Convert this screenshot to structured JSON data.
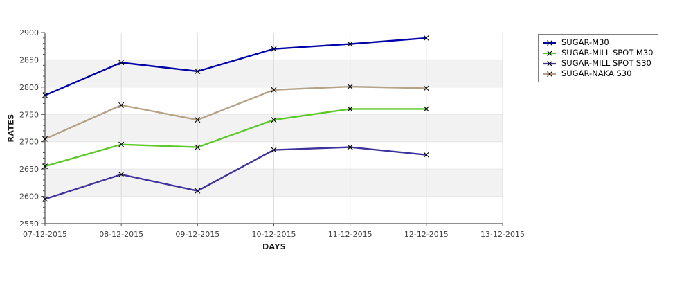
{
  "page": {
    "background": "#ffffff"
  },
  "chart_data": {
    "type": "line",
    "title": "",
    "xlabel": "DAYS",
    "ylabel": "RATES",
    "categories": [
      "07-12-2015",
      "08-12-2015",
      "09-12-2015",
      "10-12-2015",
      "11-12-2015",
      "12-12-2015",
      "13-12-2015"
    ],
    "y_ticks": [
      2550,
      2600,
      2650,
      2700,
      2750,
      2800,
      2850,
      2900
    ],
    "ylim": [
      2550,
      2900
    ],
    "minor_tick_step": 10,
    "grid": "on",
    "legend_position": "right",
    "marker": "x",
    "marker_color": "#000000",
    "band_color_odd": "#f2f2f2",
    "band_color_even": "#ffffff",
    "v_gridline_color": "#dcdcdc",
    "h_gridline_color": "#e6e6e6",
    "axis_color": "#4d4d4d",
    "series": [
      {
        "name": "SUGAR-M30",
        "color": "#0000a8",
        "values": [
          2785,
          2845,
          2829,
          2870,
          2879,
          2890
        ]
      },
      {
        "name": "SUGAR-MILL SPOT M30",
        "color": "#5cc929",
        "values": [
          2655,
          2695,
          2690,
          2740,
          2760,
          2760
        ]
      },
      {
        "name": "SUGAR-MILL SPOT S30",
        "color": "#3e339b",
        "values": [
          2595,
          2640,
          2610,
          2685,
          2690,
          2676
        ]
      },
      {
        "name": "SUGAR-NAKA S30",
        "color": "#b5a287",
        "values": [
          2705,
          2767,
          2740,
          2795,
          2801,
          2798
        ]
      }
    ]
  }
}
